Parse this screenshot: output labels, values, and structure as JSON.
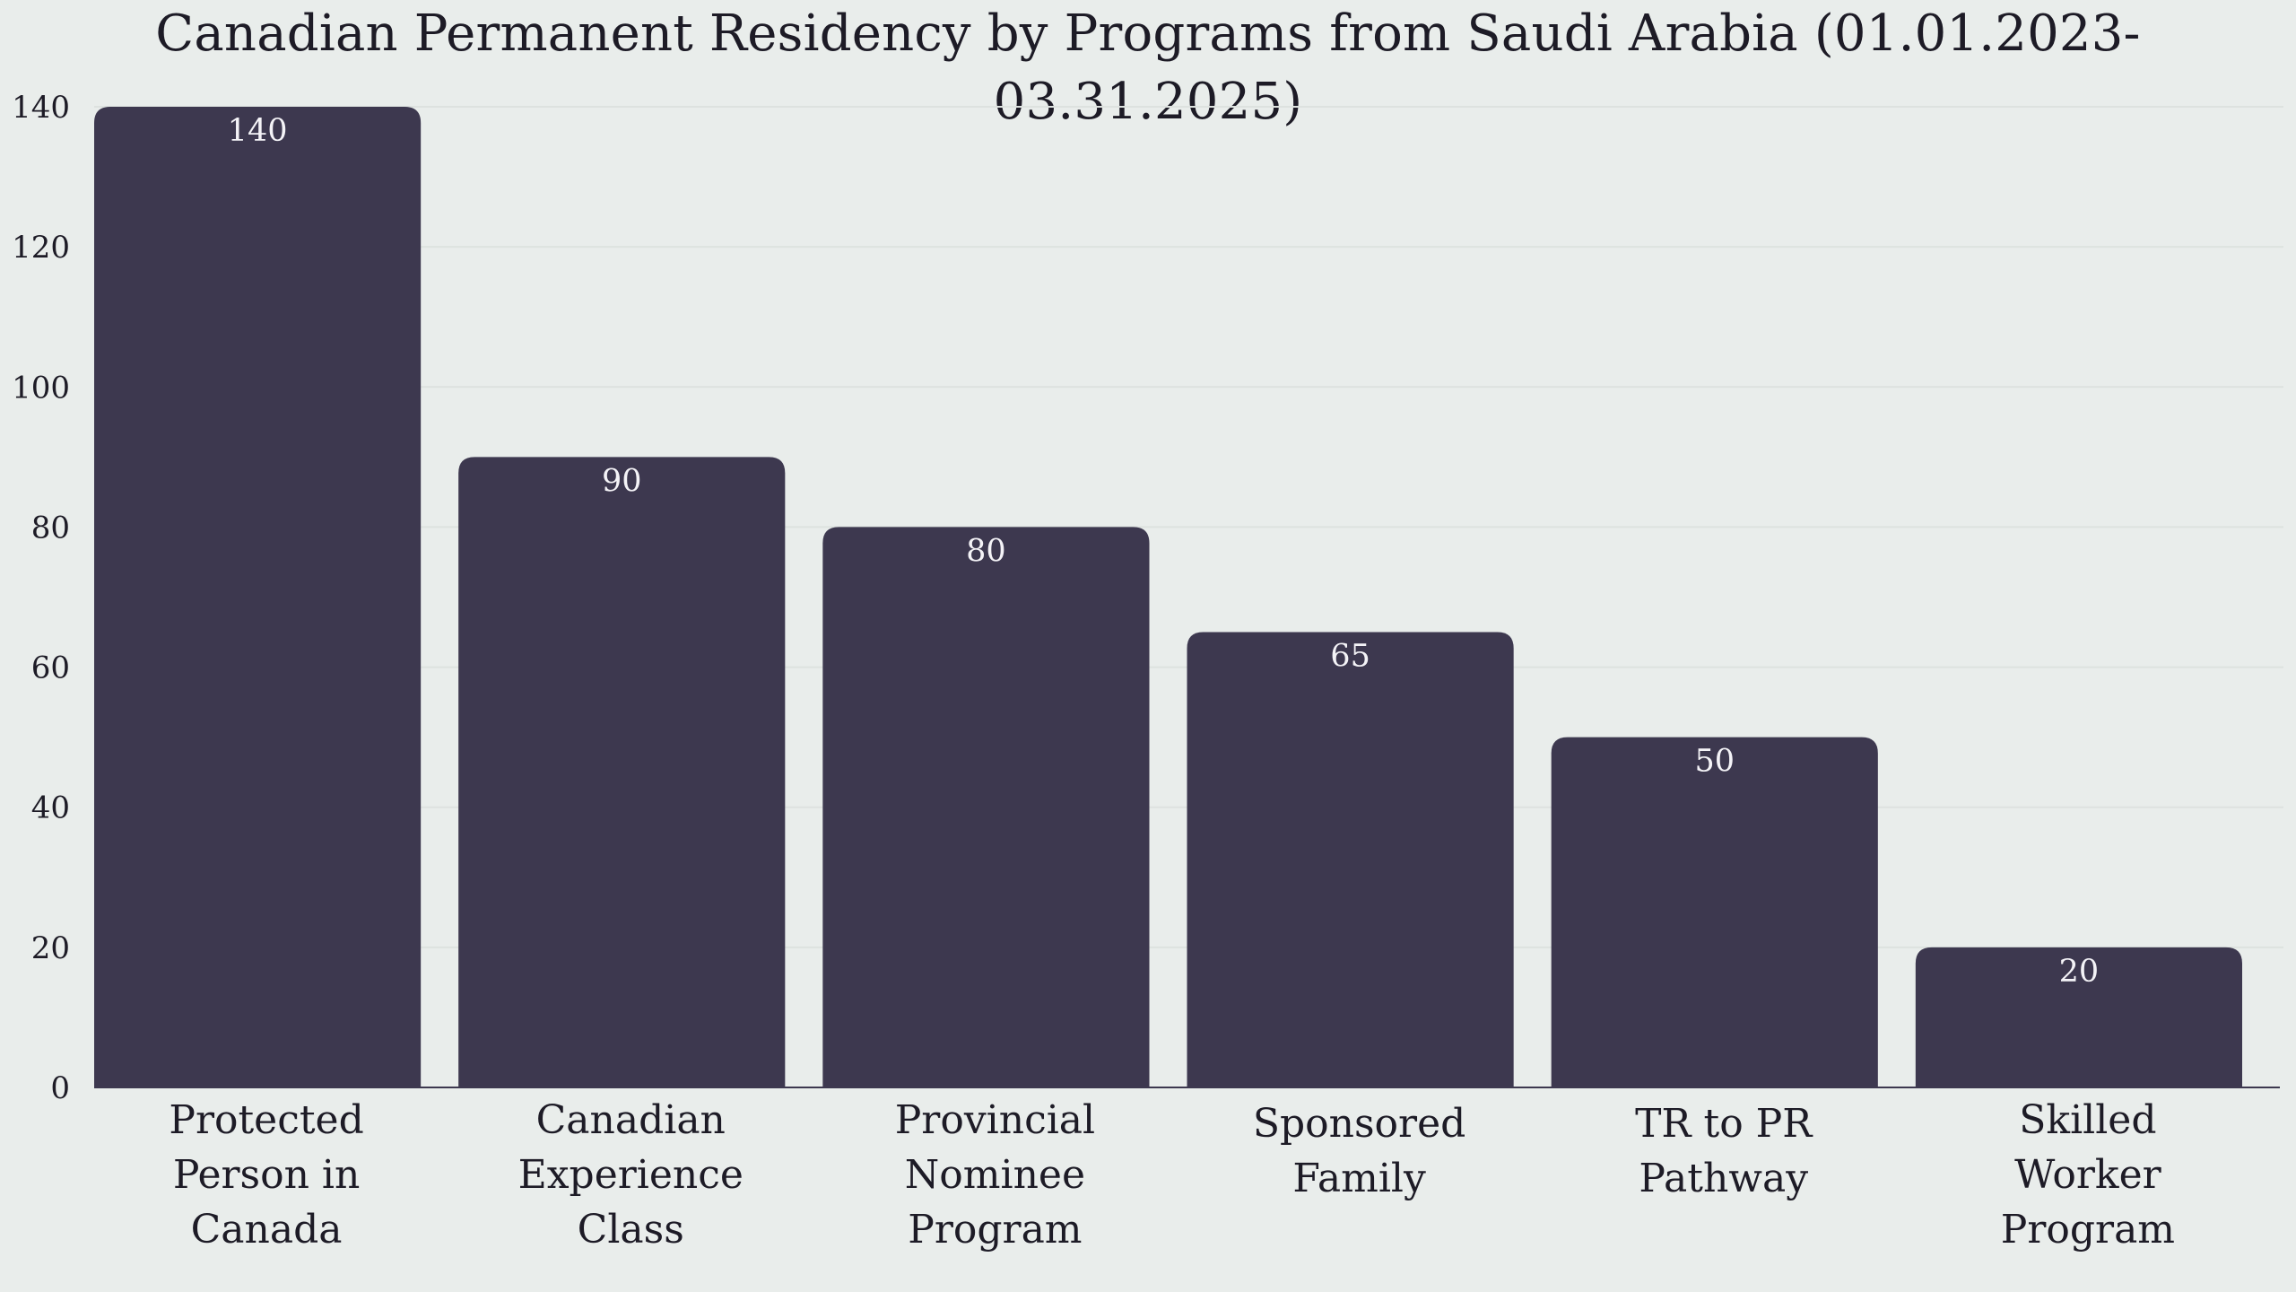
{
  "chart_data": {
    "type": "bar",
    "title": "Canadian Permanent Residency by Programs from Saudi Arabia (01.01.2023- 03.31.2025)",
    "xlabel": "",
    "ylabel": "",
    "categories": [
      "Protected Person in Canada",
      "Canadian Experience Class",
      "Provincial Nominee Program",
      "Sponsored Family",
      "TR to PR Pathway",
      "Skilled Worker Program"
    ],
    "category_label_lines": [
      [
        "Protected",
        "Person in",
        "Canada"
      ],
      [
        "Canadian",
        "Experience",
        "Class"
      ],
      [
        "Provincial",
        "Nominee",
        "Program"
      ],
      [
        "Sponsored",
        "Family"
      ],
      [
        "TR to PR",
        "Pathway"
      ],
      [
        "Skilled",
        "Worker",
        "Program"
      ]
    ],
    "values": [
      140,
      90,
      80,
      65,
      50,
      20
    ],
    "data_labels": [
      "140",
      "90",
      "80",
      "65",
      "50",
      "20"
    ],
    "ylim": [
      0,
      140
    ],
    "yticks": [
      0,
      20,
      40,
      60,
      80,
      100,
      120,
      140
    ],
    "grid": true,
    "legend": "none",
    "bar_color": "#3d384f",
    "value_label_color": "#f4f3f7",
    "background_color": "#e9edeb"
  }
}
